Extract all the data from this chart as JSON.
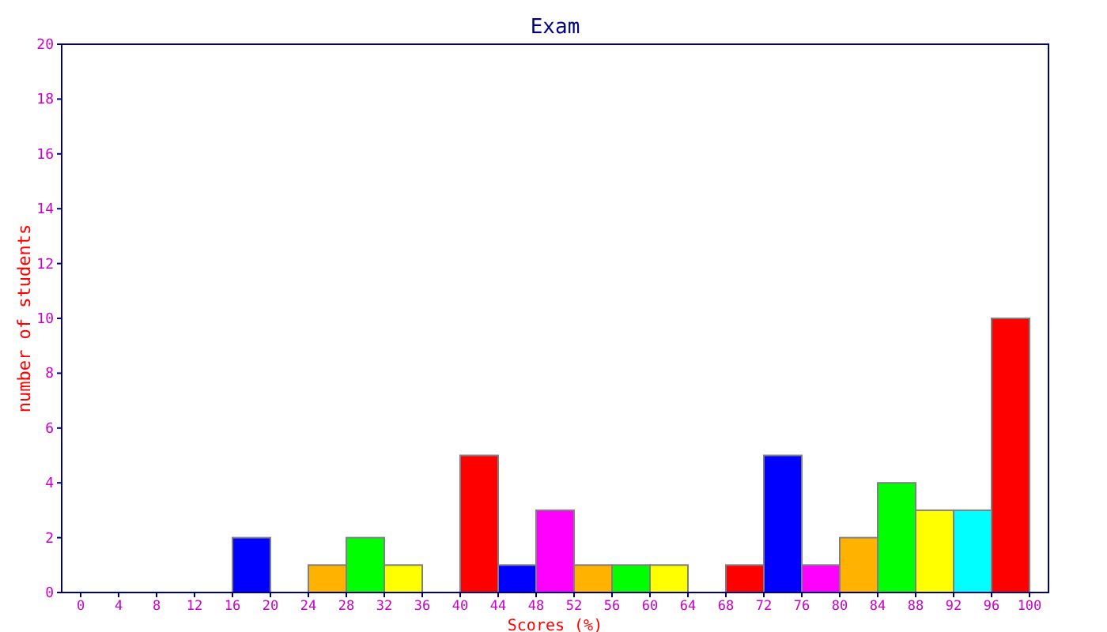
{
  "chart_data": {
    "type": "histogram",
    "title": "Exam",
    "xlabel": "Scores (%)",
    "ylabel": "number of students",
    "bins": [
      0,
      4,
      8,
      12,
      16,
      20,
      24,
      28,
      32,
      36,
      40,
      44,
      48,
      52,
      56,
      60,
      64,
      68,
      72,
      76,
      80,
      84,
      88,
      92,
      96,
      100
    ],
    "values": [
      0,
      0,
      0,
      0,
      2,
      0,
      1,
      2,
      1,
      0,
      5,
      1,
      3,
      1,
      1,
      1,
      0,
      1,
      5,
      1,
      2,
      4,
      3,
      3,
      10
    ],
    "colors": [
      "#ffb300",
      "#00ff00",
      "#ffff00",
      "#ff0000",
      "#0000ff",
      "#ff00ff",
      "#ffb300",
      "#00ff00",
      "#ffff00",
      "#00ffff",
      "#ff0000",
      "#0000ff",
      "#ff00ff",
      "#ffb300",
      "#00ff00",
      "#ffff00",
      "#00ffff",
      "#ff0000",
      "#0000ff",
      "#ff00ff",
      "#ffb300",
      "#00ff00",
      "#ffff00",
      "#00ffff",
      "#ff0000"
    ],
    "xlim": [
      -2,
      102
    ],
    "xticks": [
      0,
      4,
      8,
      12,
      16,
      20,
      24,
      28,
      32,
      36,
      40,
      44,
      48,
      52,
      56,
      60,
      64,
      68,
      72,
      76,
      80,
      84,
      88,
      92,
      96,
      100
    ],
    "ylim": [
      0,
      20
    ],
    "yticks": [
      0,
      2,
      4,
      6,
      8,
      10,
      12,
      14,
      16,
      18,
      20
    ],
    "grid": false
  }
}
